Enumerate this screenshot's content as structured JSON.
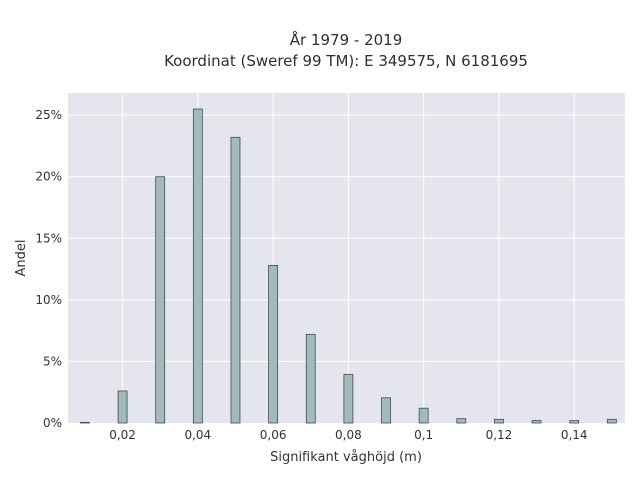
{
  "chart_data": {
    "type": "bar",
    "title_lines": [
      "År 1979 - 2019",
      "Koordinat (Sweref 99 TM): E 349575, N 6181695"
    ],
    "xlabel": "Signifikant våghöjd (m)",
    "ylabel": "Andel",
    "x": [
      0.01,
      0.02,
      0.03,
      0.04,
      0.05,
      0.06,
      0.07,
      0.08,
      0.09,
      0.1,
      0.11,
      0.12,
      0.13,
      0.14,
      0.15
    ],
    "values": [
      0.05,
      2.6,
      20.0,
      25.5,
      23.2,
      12.8,
      7.2,
      3.95,
      2.05,
      1.2,
      0.35,
      0.3,
      0.2,
      0.2,
      0.3
    ],
    "xlim": [
      0.0055,
      0.1535
    ],
    "ylim": [
      0,
      26.8
    ],
    "x_ticks": [
      0.02,
      0.04,
      0.06,
      0.08,
      0.1,
      0.12,
      0.14
    ],
    "x_tick_labels": [
      "0,02",
      "0,04",
      "0,06",
      "0,08",
      "0,1",
      "0,12",
      "0,14"
    ],
    "y_ticks": [
      0,
      5,
      10,
      15,
      20,
      25
    ],
    "y_tick_labels": [
      "0%",
      "5%",
      "10%",
      "15%",
      "20%",
      "25%"
    ],
    "grid": true,
    "colors": {
      "plot_background": "#e5e5ee",
      "grid": "#ffffff",
      "bar_fill": "#a3babc",
      "bar_stroke": "#3d4f4f"
    }
  }
}
